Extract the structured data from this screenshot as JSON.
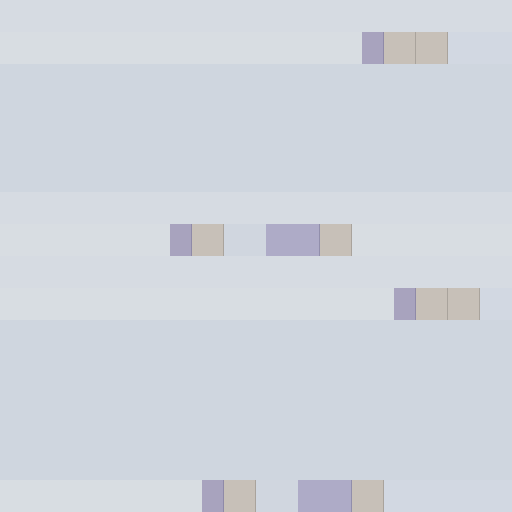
{
  "screen": {
    "rows": [
      {
        "segments": [
          "lavender",
          "taupe",
          "taupe",
          "pale"
        ]
      },
      {
        "segments": [
          "lavender",
          "taupe",
          "pale",
          "wide-lavender",
          "taupe"
        ]
      },
      {
        "segments": [
          "lavender",
          "taupe",
          "taupe",
          "pale"
        ]
      },
      {
        "segments": [
          "lavender",
          "taupe",
          "pale",
          "wide-lavender",
          "taupe"
        ]
      }
    ]
  }
}
